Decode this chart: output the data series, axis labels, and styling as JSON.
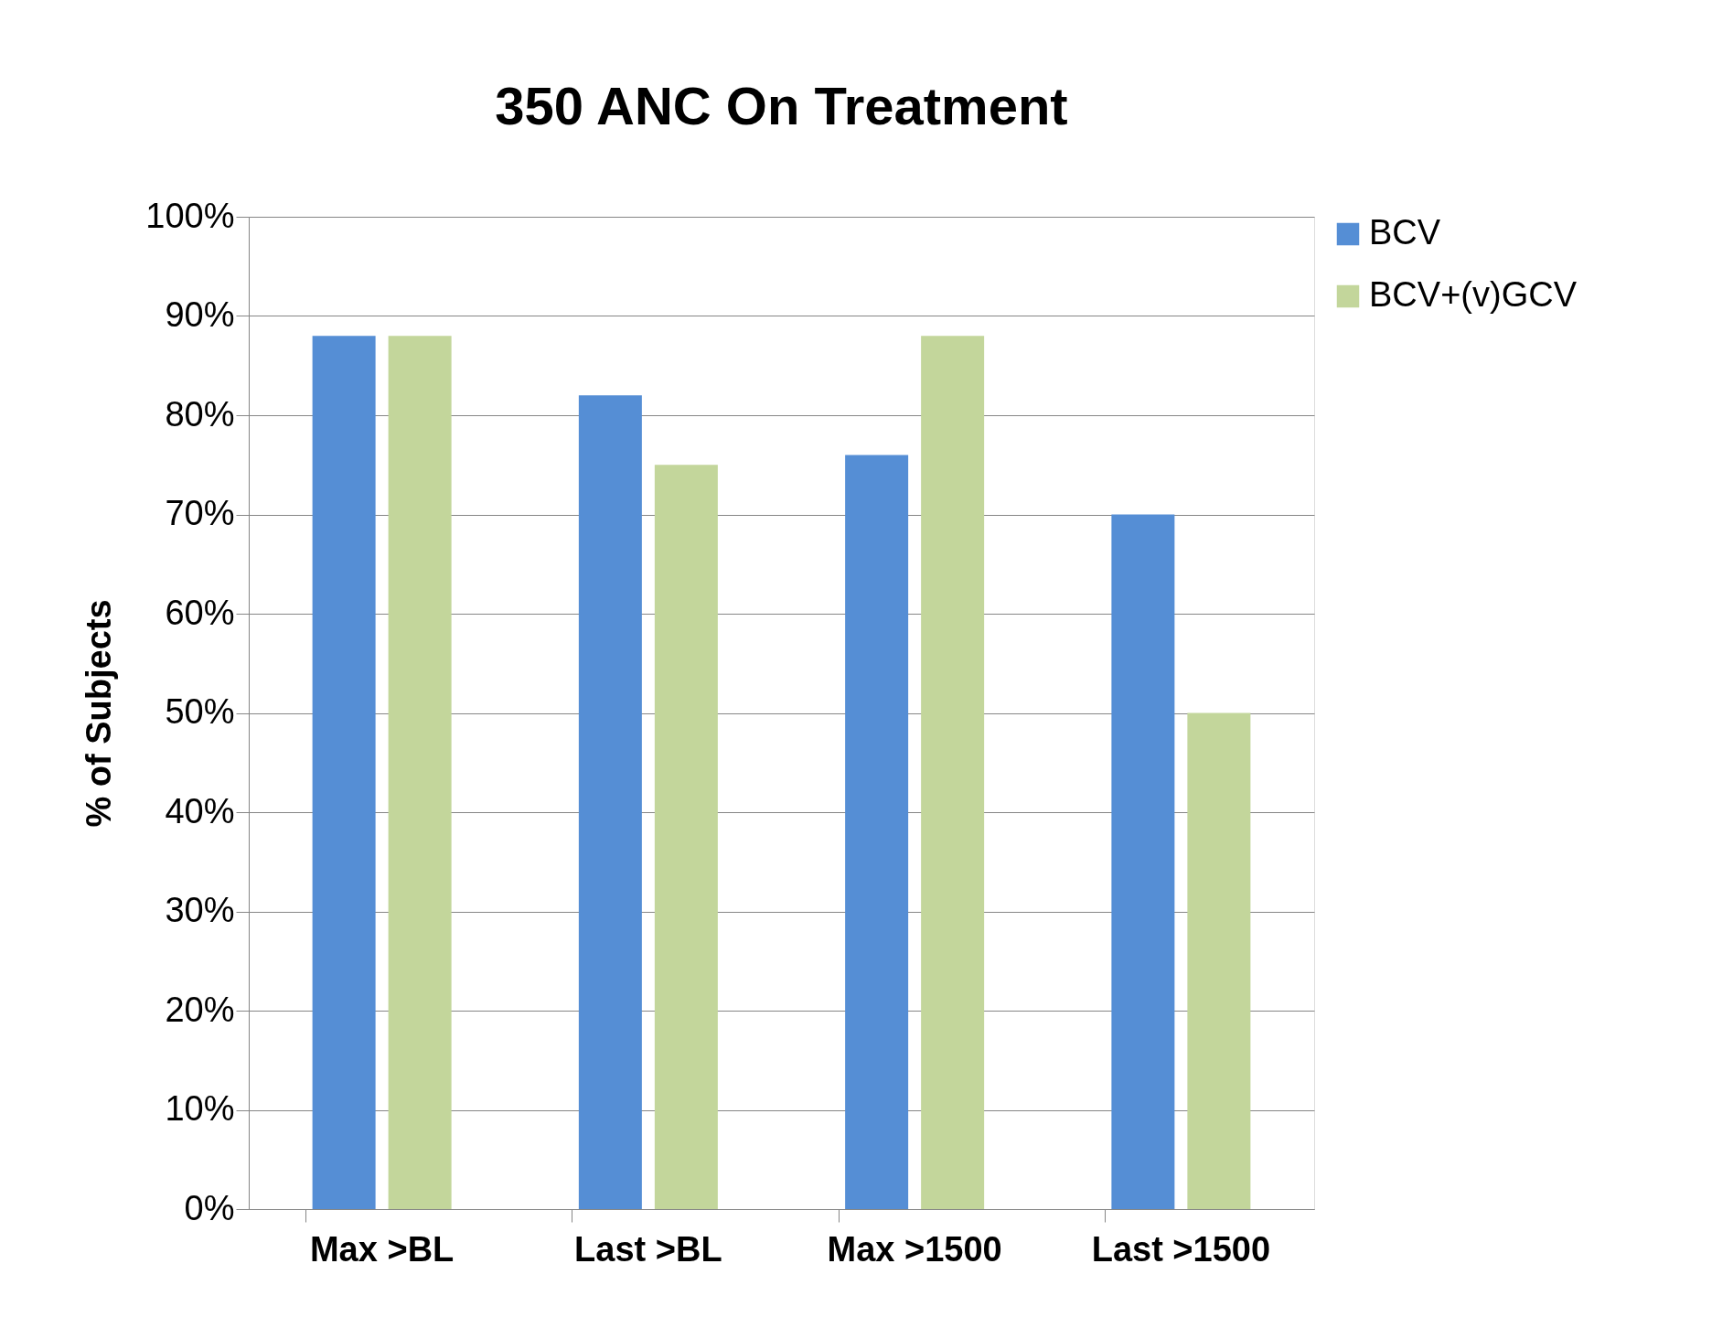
{
  "chart_data": {
    "type": "bar",
    "title": "350 ANC On Treatment",
    "ylabel": "% of Subjects",
    "categories": [
      "Max >BL",
      "Last >BL",
      "Max >1500",
      "Last >1500"
    ],
    "series": [
      {
        "name": "BCV",
        "color": "#558ed5",
        "values": [
          88,
          82,
          76,
          70
        ]
      },
      {
        "name": "BCV+(v)GCV",
        "color": "#c3d69b",
        "values": [
          88,
          75,
          88,
          50
        ]
      }
    ],
    "ylim": [
      0,
      100
    ],
    "yticks": [
      {
        "value": 0,
        "label": "0%"
      },
      {
        "value": 10,
        "label": "10%"
      },
      {
        "value": 20,
        "label": "20%"
      },
      {
        "value": 30,
        "label": "30%"
      },
      {
        "value": 40,
        "label": "40%"
      },
      {
        "value": 50,
        "label": "50%"
      },
      {
        "value": 60,
        "label": "60%"
      },
      {
        "value": 70,
        "label": "70%"
      },
      {
        "value": 80,
        "label": "80%"
      },
      {
        "value": 90,
        "label": "90%"
      },
      {
        "value": 100,
        "label": "100%"
      }
    ],
    "grid": "y",
    "legend": "right"
  }
}
